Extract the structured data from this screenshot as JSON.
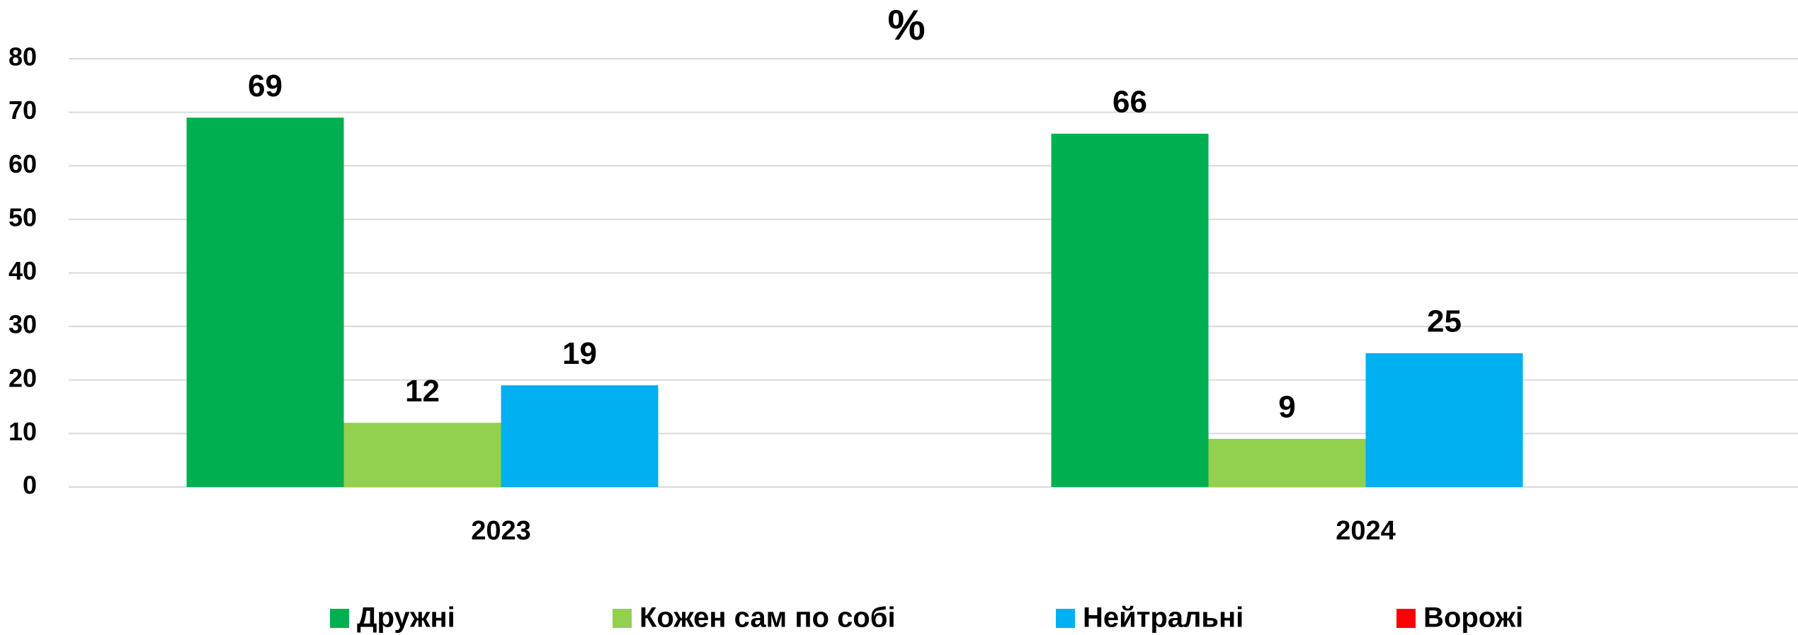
{
  "chart_data": {
    "type": "bar",
    "title": "%",
    "categories": [
      "2023",
      "2024"
    ],
    "series": [
      {
        "name": "Дружні",
        "color": "#00b050",
        "values": [
          69,
          66
        ]
      },
      {
        "name": "Кожен сам по собі",
        "color": "#92d050",
        "values": [
          12,
          9
        ]
      },
      {
        "name": "Нейтральні",
        "color": "#00b0f0",
        "values": [
          19,
          25
        ]
      },
      {
        "name": "Ворожі",
        "color": "#ff0000",
        "values": [
          null,
          null
        ]
      }
    ],
    "ylim": [
      0,
      80
    ],
    "yticks": [
      0,
      10,
      20,
      30,
      40,
      50,
      60,
      70,
      80
    ],
    "grid": true,
    "legend": "bottom"
  }
}
